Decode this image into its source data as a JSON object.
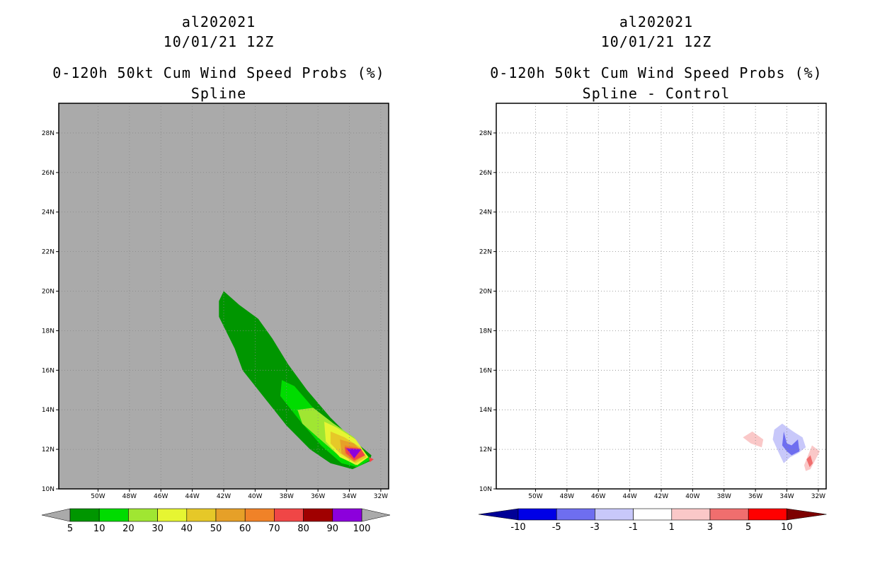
{
  "panels": [
    {
      "id": "left",
      "storm_id": "al202021",
      "datetime": "10/01/21 12Z",
      "title": "0-120h 50kt Cum Wind Speed Probs (%)",
      "subtitle": "Spline",
      "background": "#aaaaaa",
      "colorbar": {
        "levels": [
          "5",
          "10",
          "20",
          "30",
          "40",
          "50",
          "60",
          "70",
          "80",
          "90",
          "100"
        ],
        "colors": [
          "#009600",
          "#00dc00",
          "#a0e632",
          "#e6f532",
          "#e6c828",
          "#e6a028",
          "#f08228",
          "#f04646",
          "#a00000",
          "#8c00dc"
        ],
        "arrow_color": "#aaaaaa"
      }
    },
    {
      "id": "right",
      "storm_id": "al202021",
      "datetime": "10/01/21 12Z",
      "title": "0-120h 50kt Cum Wind Speed Probs (%)",
      "subtitle": "Spline - Control",
      "background": "#ffffff",
      "colorbar": {
        "levels": [
          "-10",
          "-5",
          "-3",
          "-1",
          "1",
          "3",
          "5",
          "10"
        ],
        "colors": [
          "#0000e6",
          "#6e6ef0",
          "#c8c8fa",
          "#ffffff",
          "#fac8c8",
          "#f06e6e",
          "#ff0000"
        ],
        "left_arrow_color": "#000096",
        "right_arrow_color": "#7d0000"
      }
    }
  ],
  "chart_data": {
    "type": "heatmap",
    "x_axis": {
      "range_deg_w": [
        52.5,
        31.5
      ],
      "ticks": [
        "50W",
        "48W",
        "46W",
        "44W",
        "42W",
        "40W",
        "38W",
        "36W",
        "34W",
        "32W"
      ]
    },
    "y_axis": {
      "range_deg_n": [
        10,
        29.5
      ],
      "ticks": [
        "10N",
        "12N",
        "14N",
        "16N",
        "18N",
        "20N",
        "22N",
        "24N",
        "26N",
        "28N"
      ]
    },
    "spline_contours": [
      {
        "level": 5,
        "polygon_lon_lat": [
          [
            -42.0,
            20.0
          ],
          [
            -41.0,
            19.3
          ],
          [
            -39.8,
            18.6
          ],
          [
            -38.9,
            17.6
          ],
          [
            -37.9,
            16.3
          ],
          [
            -36.7,
            15.0
          ],
          [
            -35.2,
            13.6
          ],
          [
            -33.8,
            12.5
          ],
          [
            -32.6,
            11.7
          ],
          [
            -32.7,
            11.4
          ],
          [
            -33.8,
            11.0
          ],
          [
            -35.2,
            11.3
          ],
          [
            -36.5,
            12.0
          ],
          [
            -38.0,
            13.2
          ],
          [
            -39.3,
            14.5
          ],
          [
            -40.8,
            16.0
          ],
          [
            -41.3,
            17.1
          ],
          [
            -42.3,
            18.7
          ],
          [
            -42.3,
            19.5
          ]
        ]
      },
      {
        "level": 10,
        "polygon_lon_lat": [
          [
            -38.3,
            15.5
          ],
          [
            -37.5,
            15.2
          ],
          [
            -36.2,
            14.0
          ],
          [
            -34.7,
            13.1
          ],
          [
            -33.5,
            12.2
          ],
          [
            -32.6,
            11.5
          ],
          [
            -33.5,
            11.1
          ],
          [
            -34.5,
            11.3
          ],
          [
            -35.8,
            12.2
          ],
          [
            -37.2,
            13.5
          ],
          [
            -38.4,
            14.7
          ]
        ]
      },
      {
        "level": 20,
        "polygon_lon_lat": [
          [
            -37.3,
            14.0
          ],
          [
            -36.3,
            14.1
          ],
          [
            -35.0,
            13.3
          ],
          [
            -33.7,
            12.6
          ],
          [
            -32.8,
            11.6
          ],
          [
            -33.6,
            11.2
          ],
          [
            -34.7,
            11.7
          ],
          [
            -36.0,
            12.6
          ],
          [
            -37.0,
            13.3
          ]
        ]
      },
      {
        "level": 30,
        "polygon_lon_lat": [
          [
            -35.6,
            13.4
          ],
          [
            -34.8,
            13.1
          ],
          [
            -33.6,
            12.5
          ],
          [
            -32.8,
            11.6
          ],
          [
            -33.5,
            11.2
          ],
          [
            -34.6,
            11.6
          ],
          [
            -35.5,
            12.4
          ]
        ]
      },
      {
        "level": 40,
        "polygon_lon_lat": [
          [
            -35.2,
            12.9
          ],
          [
            -34.3,
            12.6
          ],
          [
            -33.3,
            12.1
          ],
          [
            -32.9,
            11.6
          ],
          [
            -33.6,
            11.3
          ],
          [
            -34.6,
            11.8
          ],
          [
            -35.2,
            12.3
          ]
        ]
      },
      {
        "level": 50,
        "polygon_lon_lat": [
          [
            -34.6,
            12.5
          ],
          [
            -33.7,
            12.3
          ],
          [
            -33.0,
            11.7
          ],
          [
            -33.7,
            11.35
          ],
          [
            -34.5,
            11.8
          ]
        ]
      },
      {
        "level": 60,
        "polygon_lon_lat": [
          [
            -34.3,
            12.2
          ],
          [
            -33.5,
            12.1
          ],
          [
            -33.0,
            11.7
          ],
          [
            -33.7,
            11.4
          ],
          [
            -34.3,
            11.8
          ]
        ]
      },
      {
        "level": 70,
        "polygon_lon_lat": [
          [
            -34.3,
            12.1
          ],
          [
            -33.3,
            12.05
          ],
          [
            -33.0,
            11.7
          ],
          [
            -33.7,
            11.45
          ],
          [
            -34.2,
            11.8
          ]
        ]
      },
      {
        "level": 90,
        "polygon_lon_lat": [
          [
            -34.2,
            12.05
          ],
          [
            -33.25,
            12.0
          ],
          [
            -33.7,
            11.55
          ]
        ]
      },
      {
        "level": 100,
        "polygon_lon_lat": [
          [
            -34.0,
            11.95
          ],
          [
            -33.3,
            11.95
          ],
          [
            -33.7,
            11.55
          ]
        ]
      },
      {
        "level": 70,
        "polygon_lon_lat": [
          [
            -32.75,
            11.6
          ],
          [
            -32.45,
            11.5
          ],
          [
            -32.7,
            11.35
          ]
        ]
      }
    ],
    "difference_contours": [
      {
        "level": -1,
        "polygon_lon_lat": [
          [
            -34.8,
            13.0
          ],
          [
            -34.3,
            13.3
          ],
          [
            -33.6,
            12.9
          ],
          [
            -33.0,
            12.6
          ],
          [
            -32.8,
            12.1
          ],
          [
            -33.3,
            11.8
          ],
          [
            -33.8,
            11.6
          ],
          [
            -34.2,
            11.3
          ],
          [
            -34.5,
            11.8
          ],
          [
            -34.9,
            12.5
          ]
        ]
      },
      {
        "level": -3,
        "polygon_lon_lat": [
          [
            -34.2,
            12.9
          ],
          [
            -34.0,
            12.3
          ],
          [
            -33.7,
            12.2
          ],
          [
            -33.3,
            12.5
          ],
          [
            -33.2,
            11.9
          ],
          [
            -33.7,
            11.7
          ],
          [
            -34.0,
            11.9
          ],
          [
            -34.3,
            12.2
          ]
        ]
      },
      {
        "level": 1,
        "polygon_lon_lat": [
          [
            -36.8,
            12.6
          ],
          [
            -36.2,
            12.9
          ],
          [
            -35.5,
            12.5
          ],
          [
            -35.6,
            12.1
          ],
          [
            -36.3,
            12.3
          ]
        ]
      },
      {
        "level": 1,
        "polygon_lon_lat": [
          [
            -32.9,
            11.2
          ],
          [
            -32.4,
            12.2
          ],
          [
            -31.9,
            11.9
          ],
          [
            -32.5,
            11.0
          ],
          [
            -32.8,
            10.9
          ]
        ]
      },
      {
        "level": 3,
        "polygon_lon_lat": [
          [
            -32.75,
            11.5
          ],
          [
            -32.5,
            11.7
          ],
          [
            -32.35,
            11.3
          ],
          [
            -32.55,
            11.1
          ]
        ]
      }
    ]
  }
}
